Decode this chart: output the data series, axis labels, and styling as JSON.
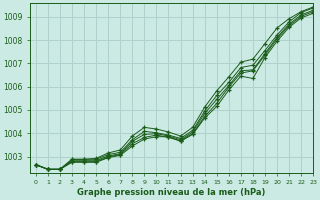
{
  "title": "Graphe pression niveau de la mer (hPa)",
  "bg_color": "#cceae4",
  "grid_color": "#b0d0cc",
  "line_color": "#1a5c1a",
  "xlim": [
    -0.5,
    23
  ],
  "ylim": [
    1002.3,
    1009.6
  ],
  "yticks": [
    1003,
    1004,
    1005,
    1006,
    1007,
    1008,
    1009
  ],
  "xticks": [
    0,
    1,
    2,
    3,
    4,
    5,
    6,
    7,
    8,
    9,
    10,
    11,
    12,
    13,
    14,
    15,
    16,
    17,
    18,
    19,
    20,
    21,
    22,
    23
  ],
  "series": [
    [
      1002.65,
      1002.45,
      1002.45,
      1002.75,
      1002.75,
      1002.75,
      1002.95,
      1003.05,
      1003.45,
      1003.75,
      1003.85,
      1003.85,
      1003.65,
      1003.95,
      1004.65,
      1005.15,
      1005.85,
      1006.45,
      1006.35,
      1007.25,
      1007.95,
      1008.55,
      1008.95,
      1009.15
    ],
    [
      1002.65,
      1002.45,
      1002.45,
      1002.78,
      1002.78,
      1002.78,
      1002.98,
      1003.08,
      1003.55,
      1003.82,
      1003.92,
      1003.82,
      1003.68,
      1003.98,
      1004.72,
      1005.28,
      1005.98,
      1006.58,
      1006.68,
      1007.35,
      1008.05,
      1008.62,
      1009.02,
      1009.22
    ],
    [
      1002.65,
      1002.45,
      1002.45,
      1002.82,
      1002.82,
      1002.82,
      1003.02,
      1003.12,
      1003.65,
      1003.95,
      1003.98,
      1003.88,
      1003.72,
      1004.05,
      1004.85,
      1005.45,
      1006.05,
      1006.68,
      1006.72,
      1007.42,
      1008.12,
      1008.68,
      1009.08,
      1009.28
    ],
    [
      1002.65,
      1002.45,
      1002.45,
      1002.88,
      1002.88,
      1002.88,
      1003.08,
      1003.18,
      1003.72,
      1004.08,
      1004.02,
      1003.92,
      1003.78,
      1004.12,
      1004.95,
      1005.62,
      1006.18,
      1006.82,
      1006.92,
      1007.55,
      1008.22,
      1008.78,
      1009.18,
      1009.38
    ]
  ],
  "series_outlier": [
    1002.65,
    1002.45,
    1002.45,
    1002.88,
    1002.88,
    1002.92,
    1003.15,
    1003.28,
    1003.88,
    1004.25,
    1004.18,
    1004.05,
    1003.88,
    1004.25,
    1005.12,
    1005.82,
    1006.42,
    1007.05,
    1007.18,
    1007.85,
    1008.52,
    1008.92,
    1009.22,
    1009.42
  ]
}
